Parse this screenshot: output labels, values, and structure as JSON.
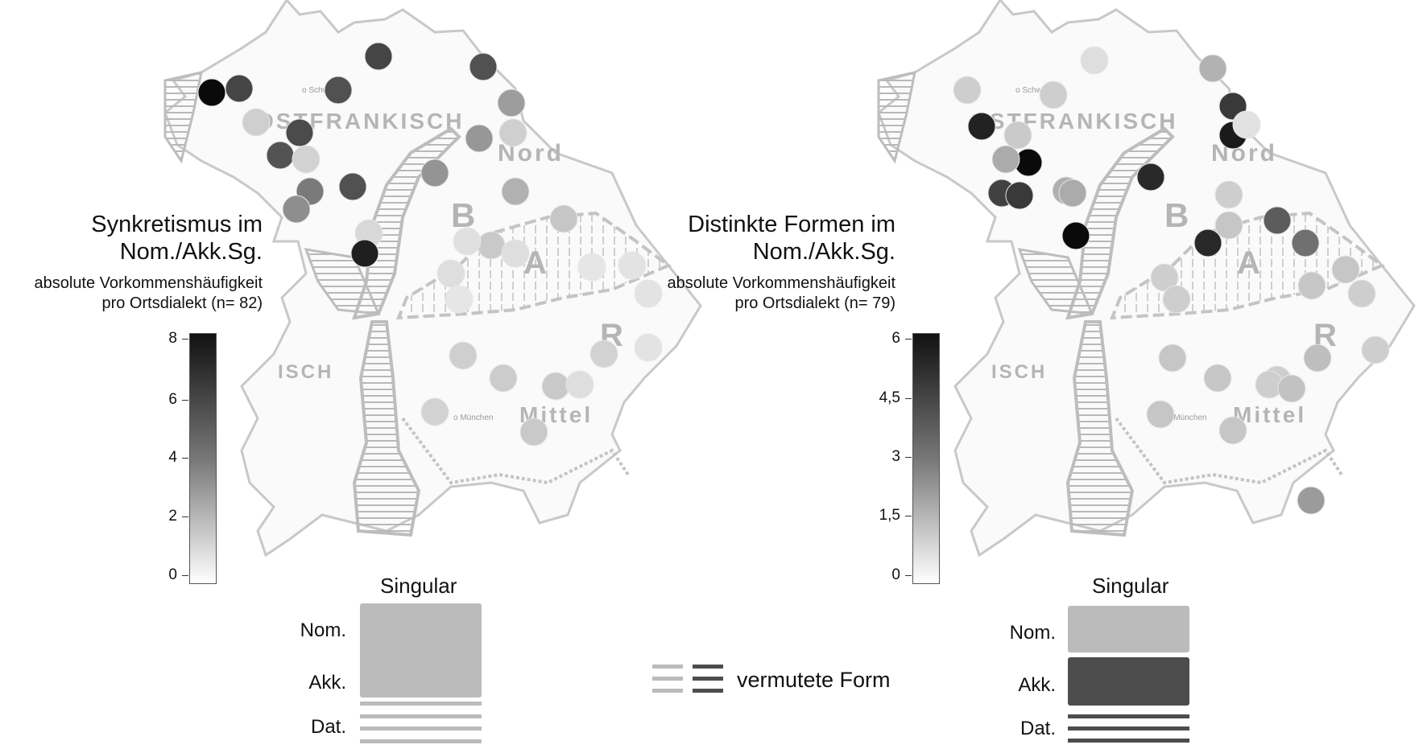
{
  "left": {
    "title_line1": "Synkretismus im",
    "title_line2": "Nom./Akk.Sg.",
    "sub_line1": "absolute Vorkommenshäufigkeit",
    "sub_line2": "pro Ortsdialekt (n= 82)",
    "scale_max": 8,
    "ticks": [
      "8",
      "6",
      "4",
      "2",
      "0"
    ],
    "singular_label": "Singular",
    "cases": [
      "Nom.",
      "Akk.",
      "Dat."
    ],
    "box_color": "#bbbbbb",
    "points": [
      {
        "v": 8
      },
      {
        "v": 6
      },
      {
        "v": 6
      },
      {
        "v": 5.6
      },
      {
        "v": 5.8
      },
      {
        "v": 5.5
      },
      {
        "v": 1.3
      },
      {
        "v": 5.6
      },
      {
        "v": 1.2
      },
      {
        "v": 4.2
      },
      {
        "v": 3.5
      },
      {
        "v": 3.3
      },
      {
        "v": 5.6
      },
      {
        "v": 1.0
      },
      {
        "v": 7.3
      },
      {
        "v": 3.0
      },
      {
        "v": 1.3
      },
      {
        "v": 2.3
      },
      {
        "v": 1.6
      },
      {
        "v": 1.5
      },
      {
        "v": 0.7
      },
      {
        "v": 0.8
      },
      {
        "v": 0.8
      },
      {
        "v": 0.5
      },
      {
        "v": 0.6
      },
      {
        "v": 0.6
      },
      {
        "v": 0.5
      },
      {
        "v": 1.3
      },
      {
        "v": 1.4
      },
      {
        "v": 1.5
      },
      {
        "v": 0.8
      },
      {
        "v": 1.2
      },
      {
        "v": 0.6
      },
      {
        "v": 1.2
      },
      {
        "v": 1.5
      },
      {
        "v": 3.2
      }
    ]
  },
  "right": {
    "title_line1": "Distinkte Formen im",
    "title_line2": "Nom./Akk.Sg.",
    "sub_line1": "absolute Vorkommenshäufigkeit",
    "sub_line2": "pro Ortsdialekt (n= 79)",
    "scale_max": 6,
    "ticks": [
      "6",
      "4,5",
      "3",
      "1,5",
      "0"
    ],
    "singular_label": "Singular",
    "cases": [
      "Nom.",
      "Akk.",
      "Dat."
    ],
    "box_top_color": "#bbbbbb",
    "box_bottom_color": "#4d4d4d",
    "points": [
      {
        "v": 1.0
      },
      {
        "v": 1.0
      },
      {
        "v": 0.6
      },
      {
        "v": 5.4
      },
      {
        "v": 1.1
      },
      {
        "v": 6.0
      },
      {
        "v": 1.9
      },
      {
        "v": 4.6
      },
      {
        "v": 4.8
      },
      {
        "v": 1.8
      },
      {
        "v": 6.0
      },
      {
        "v": 5.2
      },
      {
        "v": 1.9
      },
      {
        "v": 4.8
      },
      {
        "v": 5.6
      },
      {
        "v": 1.0
      },
      {
        "v": 1.7
      },
      {
        "v": 5.2
      },
      {
        "v": 1.2
      },
      {
        "v": 3.9
      },
      {
        "v": 3.4
      },
      {
        "v": 1.0
      },
      {
        "v": 1.0
      },
      {
        "v": 1.2
      },
      {
        "v": 1.0
      },
      {
        "v": 1.2
      },
      {
        "v": 1.4
      },
      {
        "v": 1.0
      },
      {
        "v": 1.0
      },
      {
        "v": 1.0
      },
      {
        "v": 1.3
      },
      {
        "v": 1.2
      },
      {
        "v": 1.2
      },
      {
        "v": 1.2
      },
      {
        "v": 1.2
      },
      {
        "v": 0.5
      },
      {
        "v": 2.3
      }
    ]
  },
  "map_labels": {
    "region_of": "OSTFRANKISCH",
    "region_nord": "Nord",
    "region_mittel": "Mittel",
    "region_b": "B",
    "region_a": "A",
    "region_r": "R",
    "region_isch": "ISCH",
    "city_schweinfurt": "o Schw",
    "city_muenchen": "o München"
  },
  "hatch_legend": {
    "label": "vermutete Form",
    "color_light": "#bbbbbb",
    "color_dark": "#4d4d4d"
  }
}
